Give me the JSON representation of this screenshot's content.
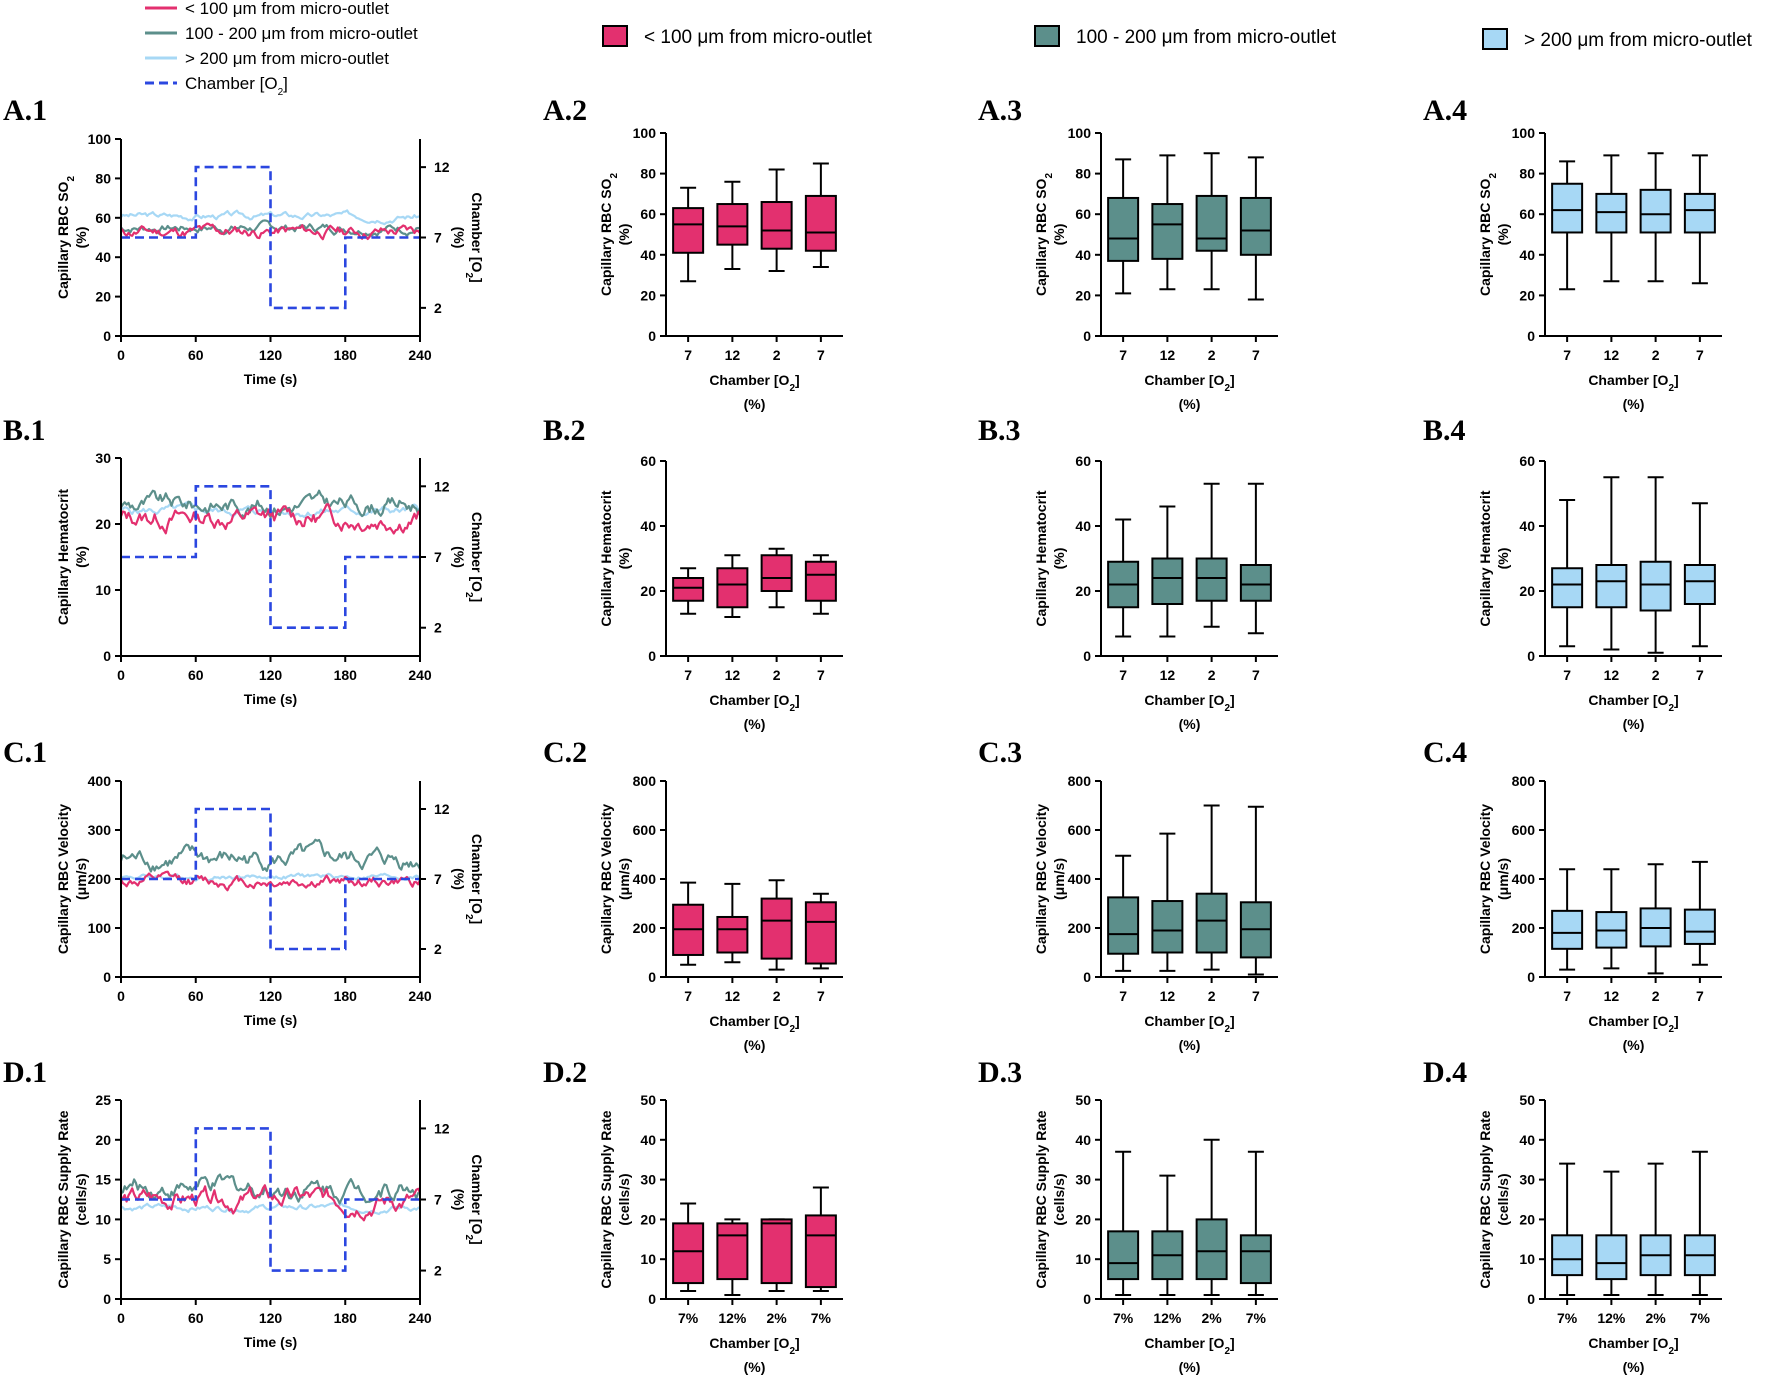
{
  "colors": {
    "pink": "#e3306f",
    "teal": "#5c8f8b",
    "lightblue": "#a7d8f5",
    "dashed_blue": "#2b47e0",
    "axis": "#000000"
  },
  "legend_lines": [
    {
      "label": "< 100 μm from micro-outlet",
      "color": "#e3306f",
      "style": "solid"
    },
    {
      "label": "100 - 200 μm from micro-outlet",
      "color": "#5c8f8b",
      "style": "solid"
    },
    {
      "label": "> 200 μm from micro-outlet",
      "color": "#a7d8f5",
      "style": "solid"
    },
    {
      "label": "Chamber [O",
      "sub": "2",
      "tail": "]",
      "color": "#2b47e0",
      "style": "dashed"
    }
  ],
  "legend_boxes": [
    {
      "label": "< 100 μm from micro-outlet",
      "fill": "#e3306f"
    },
    {
      "label": "100 - 200 μm from micro-outlet",
      "fill": "#5c8f8b"
    },
    {
      "label": "> 200 μm from micro-outlet",
      "fill": "#a7d8f5"
    }
  ],
  "panel_labels": {
    "A1": "A.1",
    "A2": "A.2",
    "A3": "A.3",
    "A4": "A.4",
    "B1": "B.1",
    "B2": "B.2",
    "B3": "B.3",
    "B4": "B.4",
    "C1": "C.1",
    "C2": "C.2",
    "C3": "C.3",
    "C4": "C.4",
    "D1": "D.1",
    "D2": "D.2",
    "D3": "D.3",
    "D4": "D.4"
  },
  "common_text": {
    "time_xlabel": "Time (s)",
    "right_ylabel_main": "Chamber [O",
    "right_ylabel_sub": "2",
    "right_ylabel_tail": "]",
    "right_ylabel_unit": "(%)",
    "box_xlabel_main": "Chamber [O",
    "box_xlabel_sub": "2",
    "box_xlabel_tail": "]",
    "box_xlabel_unit": "(%)"
  },
  "chart_data": [
    {
      "id": "A1",
      "type": "line",
      "title": "",
      "ylabel_line1": "Capillary RBC SO",
      "ylabel_sub": "2",
      "ylabel_line2": "(%)",
      "xlabel": "Time (s)",
      "xlim": [
        0,
        240
      ],
      "xticks": [
        0,
        60,
        120,
        180,
        240
      ],
      "ylim": [
        0,
        100
      ],
      "yticks": [
        0,
        20,
        40,
        60,
        80,
        100
      ],
      "right_ylim": [
        0,
        14
      ],
      "right_ticks": [
        2,
        7,
        12
      ],
      "series": [
        {
          "name": "> 200 μm from micro-outlet",
          "color": "#a7d8f5",
          "mean": 61,
          "amp": 2.5,
          "seed": 3
        },
        {
          "name": "100 - 200 μm from micro-outlet",
          "color": "#5c8f8b",
          "mean": 55,
          "amp": 3.5,
          "seed": 7
        },
        {
          "name": "< 100 μm from micro-outlet",
          "color": "#e3306f",
          "mean": 53,
          "amp": 4.5,
          "seed": 11
        }
      ],
      "chamber_o2": {
        "x": [
          0,
          60,
          60,
          120,
          120,
          180,
          180,
          240
        ],
        "y": [
          7,
          7,
          12,
          12,
          2,
          2,
          7,
          7
        ]
      }
    },
    {
      "id": "A2",
      "type": "box",
      "ylabel_line1": "Capillary RBC SO",
      "ylabel_sub": "2",
      "ylabel_line2": "(%)",
      "ylim": [
        0,
        100
      ],
      "yticks": [
        0,
        20,
        40,
        60,
        80,
        100
      ],
      "categories": [
        "7",
        "12",
        "2",
        "7"
      ],
      "fill": "#e3306f",
      "boxes": [
        {
          "min": 27,
          "q1": 41,
          "median": 55,
          "q3": 63,
          "max": 73
        },
        {
          "min": 33,
          "q1": 45,
          "median": 54,
          "q3": 65,
          "max": 76
        },
        {
          "min": 32,
          "q1": 43,
          "median": 52,
          "q3": 66,
          "max": 82
        },
        {
          "min": 34,
          "q1": 42,
          "median": 51,
          "q3": 69,
          "max": 85
        }
      ]
    },
    {
      "id": "A3",
      "type": "box",
      "ylabel_line1": "Capillary RBC SO",
      "ylabel_sub": "2",
      "ylabel_line2": "(%)",
      "ylim": [
        0,
        100
      ],
      "yticks": [
        0,
        20,
        40,
        60,
        80,
        100
      ],
      "categories": [
        "7",
        "12",
        "2",
        "7"
      ],
      "fill": "#5c8f8b",
      "boxes": [
        {
          "min": 21,
          "q1": 37,
          "median": 48,
          "q3": 68,
          "max": 87
        },
        {
          "min": 23,
          "q1": 38,
          "median": 55,
          "q3": 65,
          "max": 89
        },
        {
          "min": 23,
          "q1": 42,
          "median": 48,
          "q3": 69,
          "max": 90
        },
        {
          "min": 18,
          "q1": 40,
          "median": 52,
          "q3": 68,
          "max": 88
        }
      ]
    },
    {
      "id": "A4",
      "type": "box",
      "ylabel_line1": "Capillary RBC SO",
      "ylabel_sub": "2",
      "ylabel_line2": "(%)",
      "ylim": [
        0,
        100
      ],
      "yticks": [
        0,
        20,
        40,
        60,
        80,
        100
      ],
      "categories": [
        "7",
        "12",
        "2",
        "7"
      ],
      "fill": "#a7d8f5",
      "boxes": [
        {
          "min": 23,
          "q1": 51,
          "median": 62,
          "q3": 75,
          "max": 86
        },
        {
          "min": 27,
          "q1": 51,
          "median": 61,
          "q3": 70,
          "max": 89
        },
        {
          "min": 27,
          "q1": 51,
          "median": 60,
          "q3": 72,
          "max": 90
        },
        {
          "min": 26,
          "q1": 51,
          "median": 62,
          "q3": 70,
          "max": 89
        }
      ]
    },
    {
      "id": "B1",
      "type": "line",
      "ylabel_line1": "Capillary Hematocrit",
      "ylabel_sub": "",
      "ylabel_line2": "(%)",
      "xlabel": "Time (s)",
      "xlim": [
        0,
        240
      ],
      "xticks": [
        0,
        60,
        120,
        180,
        240
      ],
      "ylim": [
        0,
        30
      ],
      "yticks": [
        0,
        10,
        20,
        30
      ],
      "right_ylim": [
        0,
        14
      ],
      "right_ticks": [
        2,
        7,
        12
      ],
      "series": [
        {
          "name": "> 200 μm from micro-outlet",
          "color": "#a7d8f5",
          "mean": 22,
          "amp": 1.0,
          "seed": 5
        },
        {
          "name": "100 - 200 μm from micro-outlet",
          "color": "#5c8f8b",
          "mean": 23,
          "amp": 2.0,
          "seed": 9
        },
        {
          "name": "< 100 μm from micro-outlet",
          "color": "#e3306f",
          "mean": 21,
          "amp": 2.2,
          "seed": 13
        }
      ],
      "chamber_o2": {
        "x": [
          0,
          60,
          60,
          120,
          120,
          180,
          180,
          240
        ],
        "y": [
          7,
          7,
          12,
          12,
          2,
          2,
          7,
          7
        ]
      }
    },
    {
      "id": "B2",
      "type": "box",
      "ylabel_line1": "Capillary Hematocrit",
      "ylabel_sub": "",
      "ylabel_line2": "(%)",
      "ylim": [
        0,
        60
      ],
      "yticks": [
        0,
        20,
        40,
        60
      ],
      "categories": [
        "7",
        "12",
        "2",
        "7"
      ],
      "fill": "#e3306f",
      "boxes": [
        {
          "min": 13,
          "q1": 17,
          "median": 21,
          "q3": 24,
          "max": 27
        },
        {
          "min": 12,
          "q1": 15,
          "median": 22,
          "q3": 27,
          "max": 31
        },
        {
          "min": 15,
          "q1": 20,
          "median": 24,
          "q3": 31,
          "max": 33
        },
        {
          "min": 13,
          "q1": 17,
          "median": 25,
          "q3": 29,
          "max": 31
        }
      ]
    },
    {
      "id": "B3",
      "type": "box",
      "ylabel_line1": "Capillary Hematocrit",
      "ylabel_sub": "",
      "ylabel_line2": "(%)",
      "ylim": [
        0,
        60
      ],
      "yticks": [
        0,
        20,
        40,
        60
      ],
      "categories": [
        "7",
        "12",
        "2",
        "7"
      ],
      "fill": "#5c8f8b",
      "boxes": [
        {
          "min": 6,
          "q1": 15,
          "median": 22,
          "q3": 29,
          "max": 42
        },
        {
          "min": 6,
          "q1": 16,
          "median": 24,
          "q3": 30,
          "max": 46
        },
        {
          "min": 9,
          "q1": 17,
          "median": 24,
          "q3": 30,
          "max": 53
        },
        {
          "min": 7,
          "q1": 17,
          "median": 22,
          "q3": 28,
          "max": 53
        }
      ]
    },
    {
      "id": "B4",
      "type": "box",
      "ylabel_line1": "Capillary Hematocrit",
      "ylabel_sub": "",
      "ylabel_line2": "(%)",
      "ylim": [
        0,
        60
      ],
      "yticks": [
        0,
        20,
        40,
        60
      ],
      "categories": [
        "7",
        "12",
        "2",
        "7"
      ],
      "fill": "#a7d8f5",
      "boxes": [
        {
          "min": 3,
          "q1": 15,
          "median": 22,
          "q3": 27,
          "max": 48
        },
        {
          "min": 2,
          "q1": 15,
          "median": 23,
          "q3": 28,
          "max": 55
        },
        {
          "min": 1,
          "q1": 14,
          "median": 22,
          "q3": 29,
          "max": 55
        },
        {
          "min": 3,
          "q1": 16,
          "median": 23,
          "q3": 28,
          "max": 47
        }
      ]
    },
    {
      "id": "C1",
      "type": "line",
      "ylabel_line1": "Capillary RBC Velocity",
      "ylabel_sub": "",
      "ylabel_line2": "(μm/s)",
      "xlabel": "Time (s)",
      "xlim": [
        0,
        240
      ],
      "xticks": [
        0,
        60,
        120,
        180,
        240
      ],
      "ylim": [
        0,
        400
      ],
      "yticks": [
        0,
        100,
        200,
        300,
        400
      ],
      "right_ylim": [
        0,
        14
      ],
      "right_ticks": [
        2,
        7,
        12
      ],
      "series": [
        {
          "name": "> 200 μm from micro-outlet",
          "color": "#a7d8f5",
          "mean": 205,
          "amp": 8,
          "seed": 4
        },
        {
          "name": "100 - 200 μm from micro-outlet",
          "color": "#5c8f8b",
          "mean": 240,
          "amp": 28,
          "seed": 8
        },
        {
          "name": "< 100 μm from micro-outlet",
          "color": "#e3306f",
          "mean": 195,
          "amp": 18,
          "seed": 12
        }
      ],
      "chamber_o2": {
        "x": [
          0,
          60,
          60,
          120,
          120,
          180,
          180,
          240
        ],
        "y": [
          7,
          7,
          12,
          12,
          2,
          2,
          7,
          7
        ]
      }
    },
    {
      "id": "C2",
      "type": "box",
      "ylabel_line1": "Capillary RBC Velocity",
      "ylabel_sub": "",
      "ylabel_line2": "(μm/s)",
      "ylim": [
        0,
        800
      ],
      "yticks": [
        0,
        200,
        400,
        600,
        800
      ],
      "categories": [
        "7",
        "12",
        "2",
        "7"
      ],
      "fill": "#e3306f",
      "boxes": [
        {
          "min": 50,
          "q1": 90,
          "median": 195,
          "q3": 295,
          "max": 385
        },
        {
          "min": 60,
          "q1": 100,
          "median": 195,
          "q3": 245,
          "max": 380
        },
        {
          "min": 30,
          "q1": 75,
          "median": 230,
          "q3": 320,
          "max": 395
        },
        {
          "min": 35,
          "q1": 55,
          "median": 225,
          "q3": 305,
          "max": 340
        }
      ]
    },
    {
      "id": "C3",
      "type": "box",
      "ylabel_line1": "Capillary RBC Velocity",
      "ylabel_sub": "",
      "ylabel_line2": "(μm/s)",
      "ylim": [
        0,
        800
      ],
      "yticks": [
        0,
        200,
        400,
        600,
        800
      ],
      "categories": [
        "7",
        "12",
        "2",
        "7"
      ],
      "fill": "#5c8f8b",
      "boxes": [
        {
          "min": 25,
          "q1": 95,
          "median": 175,
          "q3": 325,
          "max": 495
        },
        {
          "min": 25,
          "q1": 100,
          "median": 190,
          "q3": 310,
          "max": 585
        },
        {
          "min": 30,
          "q1": 100,
          "median": 230,
          "q3": 340,
          "max": 700
        },
        {
          "min": 10,
          "q1": 80,
          "median": 195,
          "q3": 305,
          "max": 695
        }
      ]
    },
    {
      "id": "C4",
      "type": "box",
      "ylabel_line1": "Capillary RBC Velocity",
      "ylabel_sub": "",
      "ylabel_line2": "(μm/s)",
      "ylim": [
        0,
        800
      ],
      "yticks": [
        0,
        200,
        400,
        600,
        800
      ],
      "categories": [
        "7",
        "12",
        "2",
        "7"
      ],
      "fill": "#a7d8f5",
      "boxes": [
        {
          "min": 30,
          "q1": 115,
          "median": 180,
          "q3": 270,
          "max": 440
        },
        {
          "min": 35,
          "q1": 120,
          "median": 190,
          "q3": 265,
          "max": 440
        },
        {
          "min": 15,
          "q1": 125,
          "median": 200,
          "q3": 280,
          "max": 460
        },
        {
          "min": 50,
          "q1": 135,
          "median": 185,
          "q3": 275,
          "max": 470
        }
      ]
    },
    {
      "id": "D1",
      "type": "line",
      "ylabel_line1": "Capillary RBC Supply Rate",
      "ylabel_sub": "",
      "ylabel_line2": "(cells/s)",
      "xlabel": "Time (s)",
      "xlim": [
        0,
        240
      ],
      "xticks": [
        0,
        60,
        120,
        180,
        240
      ],
      "ylim": [
        0,
        25
      ],
      "yticks": [
        0,
        5,
        10,
        15,
        20,
        25
      ],
      "right_ylim": [
        0,
        14
      ],
      "right_ticks": [
        2,
        7,
        12
      ],
      "series": [
        {
          "name": "> 200 μm from micro-outlet",
          "color": "#a7d8f5",
          "mean": 11.5,
          "amp": 0.6,
          "seed": 6
        },
        {
          "name": "100 - 200 μm from micro-outlet",
          "color": "#5c8f8b",
          "mean": 14,
          "amp": 1.8,
          "seed": 10
        },
        {
          "name": "< 100 μm from micro-outlet",
          "color": "#e3306f",
          "mean": 12.5,
          "amp": 1.8,
          "seed": 14
        }
      ],
      "chamber_o2": {
        "x": [
          0,
          60,
          60,
          120,
          120,
          180,
          180,
          240
        ],
        "y": [
          7,
          7,
          12,
          12,
          2,
          2,
          7,
          7
        ]
      }
    },
    {
      "id": "D2",
      "type": "box",
      "ylabel_line1": "Capillary RBC Supply Rate",
      "ylabel_sub": "",
      "ylabel_line2": "(cells/s)",
      "ylim": [
        0,
        50
      ],
      "yticks": [
        0,
        10,
        20,
        30,
        40,
        50
      ],
      "categories": [
        "7%",
        "12%",
        "2%",
        "7%"
      ],
      "fill": "#e3306f",
      "boxes": [
        {
          "min": 2,
          "q1": 4,
          "median": 12,
          "q3": 19,
          "max": 24
        },
        {
          "min": 1,
          "q1": 5,
          "median": 16,
          "q3": 19,
          "max": 20
        },
        {
          "min": 2,
          "q1": 4,
          "median": 19,
          "q3": 20,
          "max": 20
        },
        {
          "min": 2,
          "q1": 3,
          "median": 16,
          "q3": 21,
          "max": 28
        }
      ]
    },
    {
      "id": "D3",
      "type": "box",
      "ylabel_line1": "Capillary RBC Supply Rate",
      "ylabel_sub": "",
      "ylabel_line2": "(cells/s)",
      "ylim": [
        0,
        50
      ],
      "yticks": [
        0,
        10,
        20,
        30,
        40,
        50
      ],
      "categories": [
        "7%",
        "12%",
        "2%",
        "7%"
      ],
      "fill": "#5c8f8b",
      "boxes": [
        {
          "min": 1,
          "q1": 5,
          "median": 9,
          "q3": 17,
          "max": 37
        },
        {
          "min": 1,
          "q1": 5,
          "median": 11,
          "q3": 17,
          "max": 31
        },
        {
          "min": 1,
          "q1": 5,
          "median": 12,
          "q3": 20,
          "max": 40
        },
        {
          "min": 1,
          "q1": 4,
          "median": 12,
          "q3": 16,
          "max": 37
        }
      ]
    },
    {
      "id": "D4",
      "type": "box",
      "ylabel_line1": "Capillary RBC Supply Rate",
      "ylabel_sub": "",
      "ylabel_line2": "(cells/s)",
      "ylim": [
        0,
        50
      ],
      "yticks": [
        0,
        10,
        20,
        30,
        40,
        50
      ],
      "categories": [
        "7%",
        "12%",
        "2%",
        "7%"
      ],
      "fill": "#a7d8f5",
      "boxes": [
        {
          "min": 1,
          "q1": 6,
          "median": 10,
          "q3": 16,
          "max": 34
        },
        {
          "min": 1,
          "q1": 5,
          "median": 9,
          "q3": 16,
          "max": 32
        },
        {
          "min": 1,
          "q1": 6,
          "median": 11,
          "q3": 16,
          "max": 34
        },
        {
          "min": 1,
          "q1": 6,
          "median": 11,
          "q3": 16,
          "max": 37
        }
      ]
    }
  ]
}
